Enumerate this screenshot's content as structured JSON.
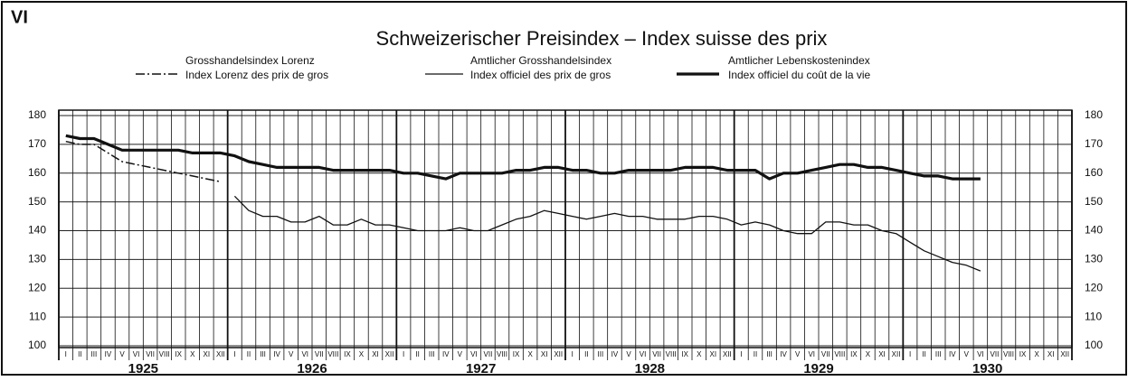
{
  "chart_data": {
    "type": "line",
    "corner_label": "VI",
    "title": "Schweizerischer Preisindex – Index suisse des prix",
    "categories": [
      "I",
      "II",
      "III",
      "IV",
      "V",
      "VI",
      "VII",
      "VIII",
      "IX",
      "X",
      "XI",
      "XII",
      "I",
      "II",
      "III",
      "IV",
      "V",
      "VI",
      "VII",
      "VIII",
      "IX",
      "X",
      "XI",
      "XII",
      "I",
      "II",
      "III",
      "IV",
      "V",
      "VI",
      "VII",
      "VIII",
      "IX",
      "X",
      "XI",
      "XII",
      "I",
      "II",
      "III",
      "IV",
      "V",
      "VI",
      "VII",
      "VIII",
      "IX",
      "X",
      "XI",
      "XII",
      "I",
      "II",
      "III",
      "IV",
      "V",
      "VI",
      "VII",
      "VIII",
      "IX",
      "X",
      "XI",
      "XII",
      "I",
      "II",
      "III",
      "IV",
      "V",
      "VI",
      "VII",
      "VIII",
      "IX",
      "X",
      "XI",
      "XII"
    ],
    "year_labels": [
      "1925",
      "1926",
      "1927",
      "1928",
      "1929",
      "1930"
    ],
    "ylim": [
      100,
      180
    ],
    "yticks": [
      100,
      110,
      120,
      130,
      140,
      150,
      160,
      170,
      180
    ],
    "grid": true,
    "series": [
      {
        "name": "Grosshandelsindex Lorenz",
        "name_fr": "Index Lorenz des prix de gros",
        "color": "#111111",
        "style": "dash-dot",
        "width": 1.5,
        "values": [
          171,
          170,
          170,
          167,
          164,
          163,
          162,
          161,
          160,
          159,
          158,
          157,
          null,
          null,
          null,
          null,
          null,
          null,
          null,
          null,
          null,
          null,
          null,
          null,
          null,
          null,
          null,
          null,
          null,
          null,
          null,
          null,
          null,
          null,
          null,
          null,
          null,
          null,
          null,
          null,
          null,
          null,
          null,
          null,
          null,
          null,
          null,
          null,
          null,
          null,
          null,
          null,
          null,
          null,
          null,
          null,
          null,
          null,
          null,
          null,
          null,
          null,
          null,
          null,
          null,
          null,
          null,
          null,
          null,
          null,
          null,
          null
        ]
      },
      {
        "name": "Amtlicher Grosshandelsindex",
        "name_fr": "Index officiel des prix de gros",
        "color": "#111111",
        "style": "solid",
        "width": 1.3,
        "values": [
          null,
          null,
          null,
          null,
          null,
          null,
          null,
          null,
          null,
          null,
          null,
          null,
          152,
          147,
          145,
          145,
          143,
          143,
          145,
          142,
          142,
          144,
          142,
          142,
          141,
          140,
          140,
          140,
          141,
          140,
          140,
          142,
          144,
          145,
          147,
          146,
          145,
          144,
          145,
          146,
          145,
          145,
          144,
          144,
          144,
          145,
          145,
          144,
          142,
          143,
          142,
          140,
          139,
          139,
          143,
          143,
          142,
          142,
          140,
          139,
          136,
          133,
          131,
          129,
          128,
          126,
          null,
          null,
          null,
          null,
          null,
          null
        ]
      },
      {
        "name": "Amtlicher Lebenskostenindex",
        "name_fr": "Index officiel du coût de la vie",
        "color": "#111111",
        "style": "solid",
        "width": 3.2,
        "values": [
          173,
          172,
          172,
          170,
          168,
          168,
          168,
          168,
          168,
          167,
          167,
          167,
          166,
          164,
          163,
          162,
          162,
          162,
          162,
          161,
          161,
          161,
          161,
          161,
          160,
          160,
          159,
          158,
          160,
          160,
          160,
          160,
          161,
          161,
          162,
          162,
          161,
          161,
          160,
          160,
          161,
          161,
          161,
          161,
          162,
          162,
          162,
          161,
          161,
          161,
          158,
          160,
          160,
          161,
          162,
          163,
          163,
          162,
          162,
          161,
          160,
          159,
          159,
          158,
          158,
          158,
          null,
          null,
          null,
          null,
          null,
          null
        ]
      }
    ]
  }
}
